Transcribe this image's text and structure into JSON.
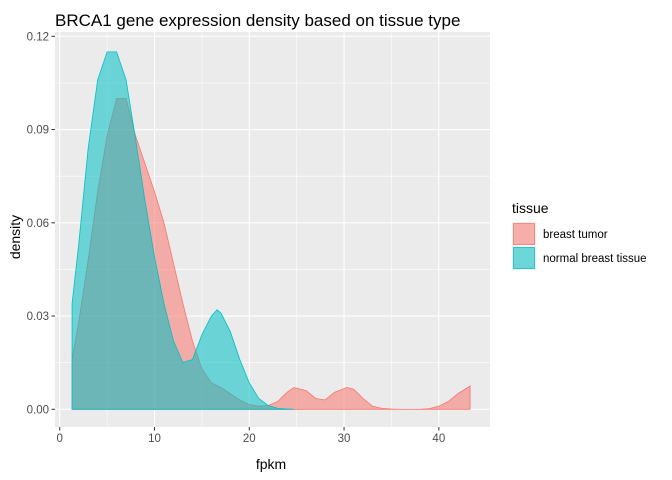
{
  "chart_data": {
    "type": "area",
    "subtype": "density",
    "title": "BRCA1 gene expression density based on tissue type",
    "xlabel": "fpkm",
    "ylabel": "density",
    "xlim": [
      -0.5,
      45.4
    ],
    "ylim": [
      -0.0057,
      0.1214
    ],
    "x_ticks": [
      0,
      10,
      20,
      30,
      40
    ],
    "x_tick_labels": [
      "0",
      "10",
      "20",
      "30",
      "40"
    ],
    "x_minor_ticks": [
      5,
      15,
      25,
      35
    ],
    "y_ticks": [
      0.0,
      0.03,
      0.06,
      0.09,
      0.12
    ],
    "y_tick_labels": [
      "0.00",
      "0.03",
      "0.06",
      "0.09",
      "0.12"
    ],
    "y_minor_ticks": [
      0.015,
      0.045,
      0.075,
      0.105
    ],
    "grid": true,
    "legend": {
      "title": "tissue",
      "position": "right"
    },
    "series": [
      {
        "name": "breast tumor",
        "fill": "#F8766D",
        "stroke": "#F8766D",
        "opacity": 0.55,
        "x": [
          1.3,
          2,
          3,
          4,
          5,
          6,
          7,
          8,
          9,
          10,
          11,
          12,
          13,
          14,
          15,
          16,
          17,
          18,
          19,
          20,
          21,
          22,
          23,
          24,
          24.7,
          26,
          27,
          28,
          29,
          30.3,
          31,
          32,
          33,
          34,
          35,
          36,
          37,
          38,
          39,
          40,
          41,
          42,
          43.3
        ],
        "y": [
          0.016,
          0.028,
          0.048,
          0.07,
          0.088,
          0.1,
          0.1,
          0.088,
          0.079,
          0.07,
          0.06,
          0.047,
          0.034,
          0.022,
          0.013,
          0.0085,
          0.007,
          0.005,
          0.003,
          0.0015,
          0.001,
          0.0012,
          0.0025,
          0.0055,
          0.007,
          0.006,
          0.0035,
          0.003,
          0.0055,
          0.007,
          0.0065,
          0.0035,
          0.001,
          0.0003,
          0.0001,
          0.0,
          0.0,
          0.0,
          0.0002,
          0.001,
          0.0025,
          0.005,
          0.0075
        ]
      },
      {
        "name": "normal breast tissue",
        "fill": "#00BFC4",
        "stroke": "#00BFC4",
        "opacity": 0.55,
        "x": [
          1.3,
          2,
          3,
          4,
          5,
          6,
          7,
          8,
          9,
          10,
          11,
          12,
          13,
          14,
          15,
          16,
          16.6,
          17,
          18,
          19,
          20,
          21,
          22,
          23,
          24,
          24.7
        ],
        "y": [
          0.034,
          0.053,
          0.084,
          0.106,
          0.115,
          0.115,
          0.106,
          0.087,
          0.067,
          0.049,
          0.034,
          0.022,
          0.015,
          0.016,
          0.024,
          0.03,
          0.032,
          0.031,
          0.025,
          0.016,
          0.0085,
          0.0035,
          0.0012,
          0.0003,
          0.0001,
          0.0
        ]
      }
    ]
  }
}
